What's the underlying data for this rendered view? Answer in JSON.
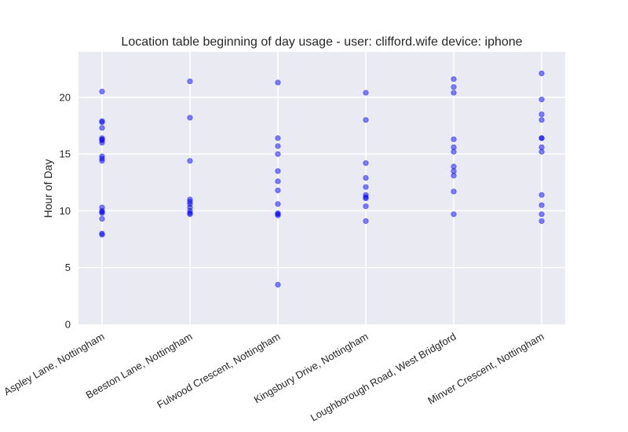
{
  "chart_data": {
    "type": "scatter",
    "title": "Location table beginning of day usage -  user: clifford.wife device: iphone",
    "xlabel": "",
    "ylabel": "Hour of Day",
    "ylim": [
      0,
      24
    ],
    "yticks": [
      0,
      5,
      10,
      15,
      20
    ],
    "grid": true,
    "point_color": "#0000ff",
    "background_color": "#eaeaf2",
    "categories": [
      "Aspley Lane, Nottingham",
      "Beeston Lane, Nottingham",
      "Fulwood Crescent, Nottingham",
      "Kingsbury Drive, Nottingham",
      "Loughborough Road, West Bridgford",
      "Minver Crescent, Nottingham"
    ],
    "points": [
      [
        20.5,
        17.9,
        17.8,
        17.3,
        16.4,
        16.3,
        16.2,
        16.0,
        14.8,
        14.6,
        14.4,
        10.3,
        10.0,
        9.9,
        9.8,
        9.3,
        8.0,
        7.9
      ],
      [
        21.4,
        18.2,
        14.4,
        11.0,
        10.8,
        10.6,
        10.3,
        10.0,
        9.8,
        9.7
      ],
      [
        21.3,
        16.4,
        15.7,
        15.0,
        13.5,
        12.6,
        11.8,
        10.6,
        9.8,
        9.7,
        9.6,
        3.5
      ],
      [
        20.4,
        18.0,
        14.2,
        12.9,
        12.1,
        11.4,
        11.2,
        11.1,
        10.4,
        9.1
      ],
      [
        21.6,
        20.9,
        20.4,
        16.3,
        15.6,
        15.2,
        13.9,
        13.5,
        13.1,
        11.7,
        9.7
      ],
      [
        22.1,
        19.8,
        18.5,
        18.0,
        16.4,
        16.4,
        15.6,
        15.2,
        11.4,
        10.5,
        9.7,
        9.1
      ]
    ]
  }
}
